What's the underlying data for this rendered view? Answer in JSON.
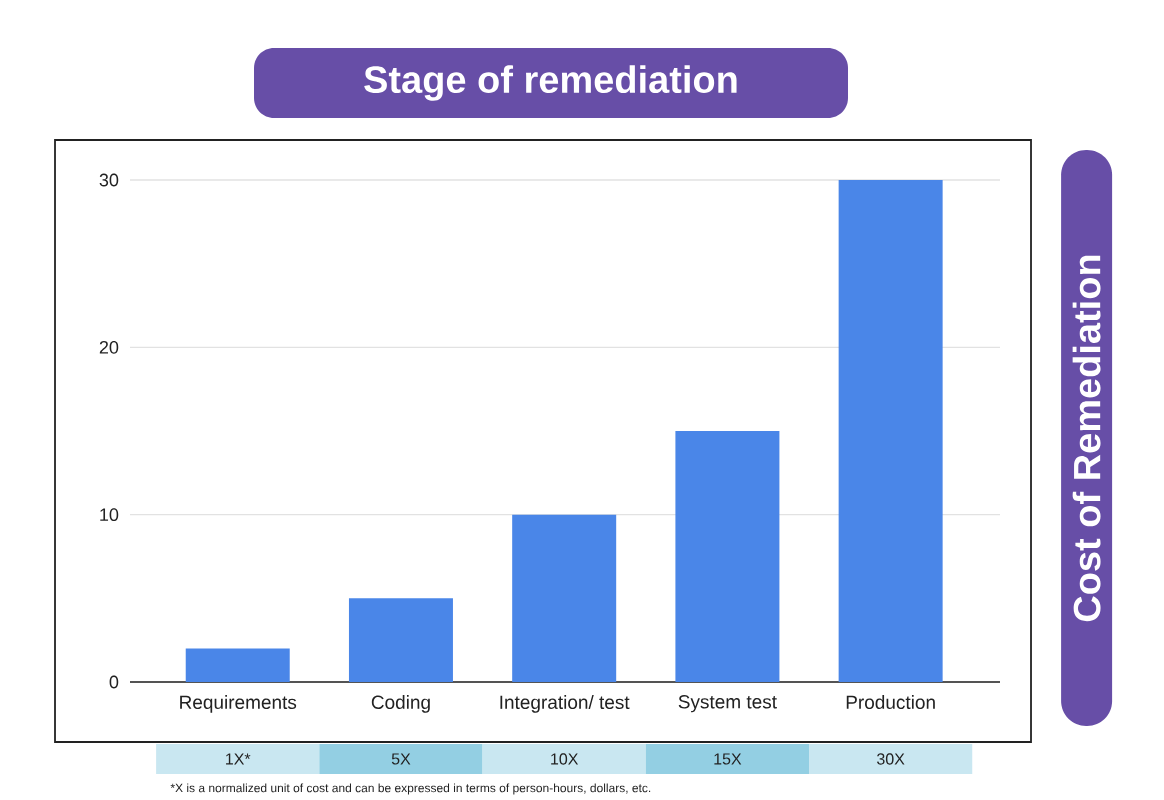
{
  "chart_data": {
    "type": "bar",
    "title": "Stage of remediation",
    "ylabel": "Cost of Remediation",
    "categories": [
      "Requirements",
      "Coding",
      "Integration/ test",
      "System test",
      "Production"
    ],
    "values": [
      2,
      5,
      10,
      15,
      30
    ],
    "color": "#4a86e8",
    "ylim": [
      0,
      30
    ],
    "yticks": [
      0,
      10,
      20,
      30
    ],
    "grid": "y",
    "annotations": [
      "1X*",
      "5X",
      "10X",
      "15X",
      "30X",
      "*X is a normalized unit of cost and can be expressed in terms of person-hours, dollars, etc."
    ]
  }
}
